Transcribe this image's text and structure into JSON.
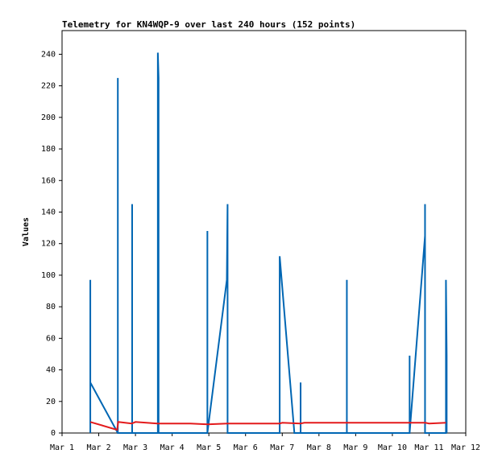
{
  "chart_data": {
    "type": "line",
    "title": "Telemetry for KN4WQP-9 over last 240 hours (152 points)",
    "y_label": "Values",
    "xlim": [
      1,
      12
    ],
    "xticks": [
      {
        "value": 1,
        "label": "Mar 1"
      },
      {
        "value": 2,
        "label": "Mar 2"
      },
      {
        "value": 3,
        "label": "Mar 3"
      },
      {
        "value": 4,
        "label": "Mar 4"
      },
      {
        "value": 5,
        "label": "Mar 5"
      },
      {
        "value": 6,
        "label": "Mar 6"
      },
      {
        "value": 7,
        "label": "Mar 7"
      },
      {
        "value": 8,
        "label": "Mar 8"
      },
      {
        "value": 9,
        "label": "Mar 9"
      },
      {
        "value": 10,
        "label": "Mar 10"
      },
      {
        "value": 11,
        "label": "Mar 11"
      },
      {
        "value": 12,
        "label": "Mar 12"
      }
    ],
    "ylim": [
      0,
      255
    ],
    "yticks": [
      0,
      20,
      40,
      60,
      80,
      100,
      120,
      140,
      160,
      180,
      200,
      220,
      240
    ],
    "series": [
      {
        "color": "#0066b3",
        "x": [
          1.77,
          1.77,
          1.77,
          2.52,
          2.52,
          2.52,
          2.91,
          2.91,
          2.91,
          3.61,
          3.61,
          3.63,
          3.63,
          4.96,
          4.96,
          4.96,
          5.49,
          5.51,
          5.51,
          5.51,
          6.93,
          6.93,
          7.33,
          7.5,
          7.5,
          7.5,
          8.76,
          8.76,
          8.76,
          10.47,
          10.47,
          10.47,
          10.89,
          10.89,
          10.89,
          11.46,
          11.46,
          11.48,
          11.48
        ],
        "values": [
          0,
          97,
          32,
          0,
          225,
          0,
          0,
          145,
          0,
          0,
          241,
          225,
          0,
          0,
          128,
          0,
          97,
          145,
          65,
          0,
          0,
          112,
          0,
          0,
          32,
          0,
          0,
          97,
          0,
          0,
          49,
          0,
          125,
          145,
          0,
          0,
          97,
          49,
          0
        ]
      },
      {
        "color": "#e31a1c",
        "x": [
          1.77,
          2.5,
          2.53,
          2.9,
          3.0,
          3.6,
          4.5,
          4.96,
          5.5,
          6.93,
          7.0,
          7.5,
          7.6,
          8.76,
          10.47,
          10.9,
          11.0,
          11.46
        ],
        "values": [
          7,
          2,
          7,
          6,
          7,
          6,
          6,
          5.5,
          6,
          6,
          6.5,
          6,
          6.5,
          6.5,
          6.5,
          6.5,
          6,
          6.5
        ]
      }
    ]
  }
}
